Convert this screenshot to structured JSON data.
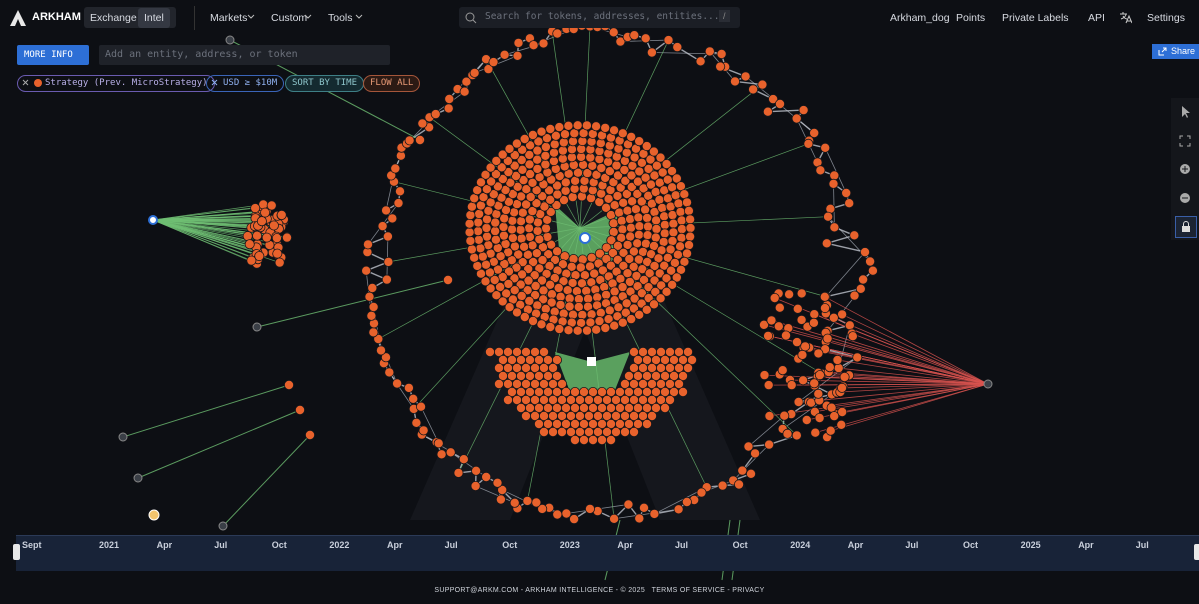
{
  "nav": {
    "brand": "ARKHAM",
    "tabs": [
      "Exchange",
      "Intel"
    ],
    "menus": [
      "Markets",
      "Custom",
      "Tools"
    ],
    "search_placeholder": "Search for tokens, addresses, entities...",
    "search_shortcut": "/",
    "links": [
      "Arkham_dog",
      "Points",
      "Private Labels",
      "API",
      "Settings"
    ]
  },
  "toolbar": {
    "more_info": "MORE INFO",
    "input_placeholder": "Add an entity, address, or token",
    "share": "Share"
  },
  "filters": [
    "Strategy (Prev. MicroStrategy)",
    "USD ≥ $10M",
    "SORT BY TIME",
    "FLOW ALL"
  ],
  "timeline": {
    "labels": [
      "Sept",
      "2021",
      "Apr",
      "Jul",
      "Oct",
      "2022",
      "Apr",
      "Jul",
      "Oct",
      "2023",
      "Apr",
      "Jul",
      "Oct",
      "2024",
      "Apr",
      "Jul",
      "Oct",
      "2025",
      "Apr",
      "Jul"
    ]
  },
  "footer": {
    "contact": "SUPPORT@ARKM.COM - ARKHAM INTELLIGENCE - © 2025",
    "terms": "TERMS OF SERVICE",
    "separator": "-",
    "privacy": "PRIVACY"
  }
}
